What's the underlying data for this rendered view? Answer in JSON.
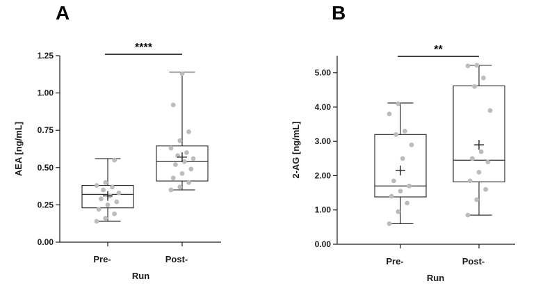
{
  "chart_data": [
    {
      "type": "box",
      "panel_label": "A",
      "ylabel": "AEA [ng/mL]",
      "xlabel": "Run",
      "categories": [
        "Pre-",
        "Post-"
      ],
      "ylim": [
        0,
        1.25
      ],
      "yticks": [
        0.0,
        0.25,
        0.5,
        0.75,
        1.0,
        1.25
      ],
      "ytick_labels": [
        "0.00",
        "0.25",
        "0.50",
        "0.75",
        "1.00",
        "1.25"
      ],
      "boxes": [
        {
          "category": "Pre-",
          "min": 0.14,
          "q1": 0.23,
          "median": 0.32,
          "q3": 0.38,
          "max": 0.56,
          "mean": 0.31
        },
        {
          "category": "Post-",
          "min": 0.35,
          "q1": 0.41,
          "median": 0.54,
          "q3": 0.645,
          "max": 1.14,
          "mean": 0.57
        }
      ],
      "points": [
        [
          0.14,
          0.16,
          0.19,
          0.22,
          0.25,
          0.27,
          0.29,
          0.31,
          0.33,
          0.35,
          0.37,
          0.38,
          0.4,
          0.55
        ],
        [
          0.35,
          0.37,
          0.4,
          0.43,
          0.46,
          0.49,
          0.52,
          0.54,
          0.56,
          0.58,
          0.6,
          0.63,
          0.68,
          0.74,
          0.92,
          1.13
        ]
      ],
      "significance": "****",
      "grid": false,
      "colors": {
        "points": "#bcbcbc",
        "box": "#333333"
      }
    },
    {
      "type": "box",
      "panel_label": "B",
      "ylabel": "2-AG [ng/mL]",
      "xlabel": "Run",
      "categories": [
        "Pre-",
        "Post-"
      ],
      "ylim": [
        0,
        5.5
      ],
      "yticks": [
        0.0,
        1.0,
        2.0,
        3.0,
        4.0,
        5.0
      ],
      "ytick_labels": [
        "0.00",
        "1.00",
        "2.00",
        "3.00",
        "4.00",
        "5.00"
      ],
      "boxes": [
        {
          "category": "Pre-",
          "min": 0.6,
          "q1": 1.38,
          "median": 1.7,
          "q3": 3.2,
          "max": 4.12,
          "mean": 2.15
        },
        {
          "category": "Post-",
          "min": 0.85,
          "q1": 1.82,
          "median": 2.45,
          "q3": 4.62,
          "max": 5.22,
          "mean": 2.9
        }
      ],
      "points": [
        [
          0.6,
          0.95,
          1.2,
          1.4,
          1.55,
          1.7,
          1.85,
          2.5,
          2.9,
          3.2,
          3.3,
          3.8,
          4.1
        ],
        [
          0.85,
          1.3,
          1.6,
          1.85,
          2.1,
          2.4,
          2.5,
          2.7,
          3.9,
          4.6,
          4.85,
          5.2,
          5.22
        ]
      ],
      "significance": "**",
      "grid": false,
      "colors": {
        "points": "#bcbcbc",
        "box": "#333333"
      }
    }
  ]
}
